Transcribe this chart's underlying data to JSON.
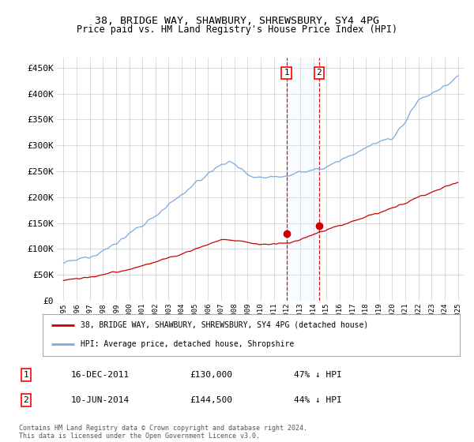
{
  "title": "38, BRIDGE WAY, SHAWBURY, SHREWSBURY, SY4 4PG",
  "subtitle": "Price paid vs. HM Land Registry's House Price Index (HPI)",
  "legend_line1": "38, BRIDGE WAY, SHAWBURY, SHREWSBURY, SY4 4PG (detached house)",
  "legend_line2": "HPI: Average price, detached house, Shropshire",
  "annotation1_label": "1",
  "annotation1_date": "16-DEC-2011",
  "annotation1_price": "£130,000",
  "annotation1_hpi": "47% ↓ HPI",
  "annotation2_label": "2",
  "annotation2_date": "10-JUN-2014",
  "annotation2_price": "£144,500",
  "annotation2_hpi": "44% ↓ HPI",
  "footer": "Contains HM Land Registry data © Crown copyright and database right 2024.\nThis data is licensed under the Open Government Licence v3.0.",
  "sale1_x": 2011.96,
  "sale1_y": 130000,
  "sale2_x": 2014.44,
  "sale2_y": 144500,
  "ylim": [
    0,
    470000
  ],
  "xlim": [
    1994.5,
    2025.5
  ],
  "hpi_color": "#7aaadd",
  "sold_color": "#cc0000",
  "bg_color": "#ffffff",
  "grid_color": "#cccccc",
  "shade_color": "#ddeeff",
  "yticks": [
    0,
    50000,
    100000,
    150000,
    200000,
    250000,
    300000,
    350000,
    400000,
    450000
  ],
  "ylabels": [
    "£0",
    "£50K",
    "£100K",
    "£150K",
    "£200K",
    "£250K",
    "£300K",
    "£350K",
    "£400K",
    "£450K"
  ]
}
